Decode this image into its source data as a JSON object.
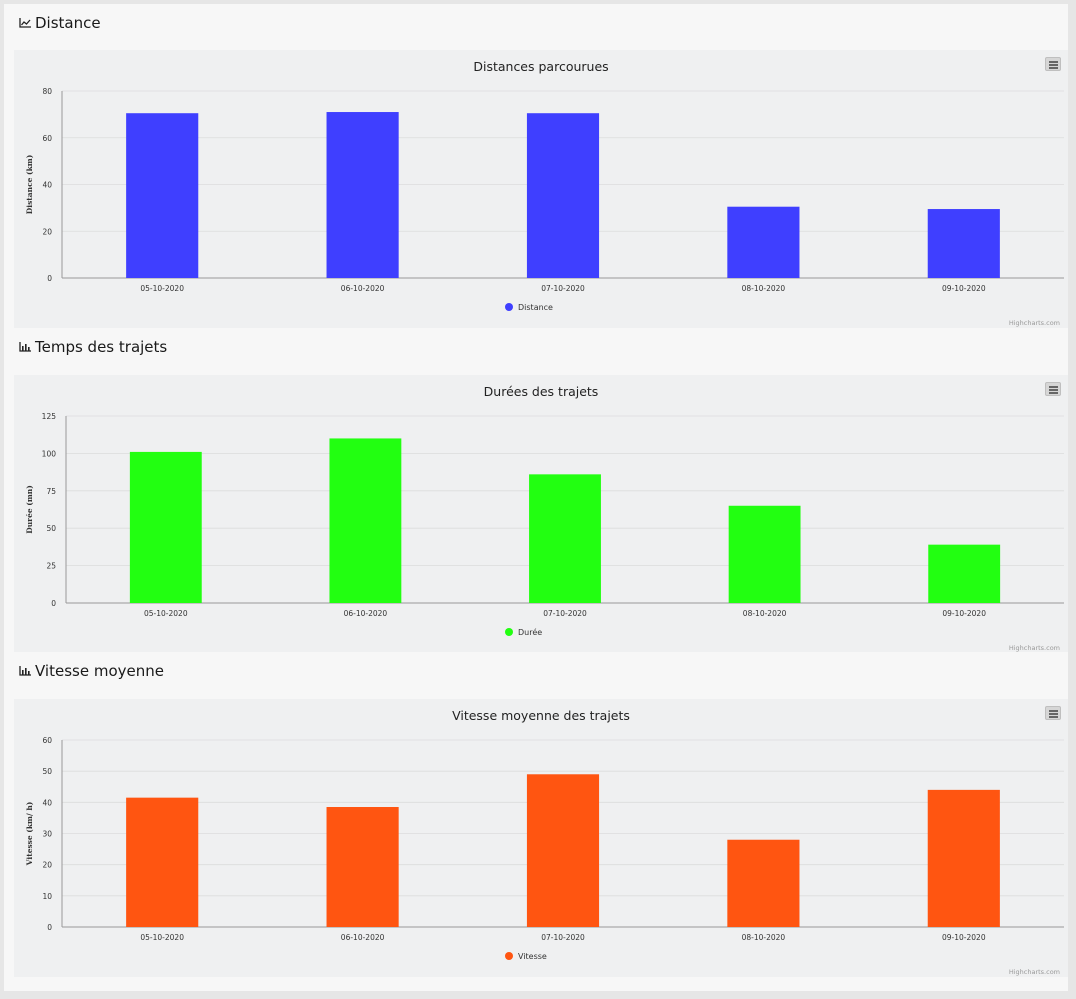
{
  "sections": [
    {
      "title": "Distance",
      "icon": "area-chart-icon"
    },
    {
      "title": "Temps des trajets",
      "icon": "bar-chart-icon"
    },
    {
      "title": "Vitesse moyenne",
      "icon": "bar-chart-icon"
    }
  ],
  "credits": "Highcharts.com",
  "chart_data": [
    {
      "type": "bar",
      "title": "Distances parcourues",
      "xlabel": "",
      "ylabel": "Distance (km)",
      "categories": [
        "05-10-2020",
        "06-10-2020",
        "07-10-2020",
        "08-10-2020",
        "09-10-2020"
      ],
      "series": [
        {
          "name": "Distance",
          "values": [
            70.5,
            71,
            70.5,
            30.5,
            29.5
          ],
          "color": "#3f3fff"
        }
      ],
      "ylim": [
        0,
        80
      ],
      "yticks": [
        0,
        20,
        40,
        60,
        80
      ],
      "grid": true,
      "legend": "bottom-center"
    },
    {
      "type": "bar",
      "title": "Durées des trajets",
      "xlabel": "",
      "ylabel": "Durée (mn)",
      "categories": [
        "05-10-2020",
        "06-10-2020",
        "07-10-2020",
        "08-10-2020",
        "09-10-2020"
      ],
      "series": [
        {
          "name": "Durée",
          "values": [
            101,
            110,
            86,
            65,
            39
          ],
          "color": "#22ff11"
        }
      ],
      "ylim": [
        0,
        125
      ],
      "yticks": [
        0,
        25,
        50,
        75,
        100,
        125
      ],
      "grid": true,
      "legend": "bottom-center"
    },
    {
      "type": "bar",
      "title": "Vitesse moyenne des trajets",
      "xlabel": "",
      "ylabel": "Vitesse (km/ h)",
      "categories": [
        "05-10-2020",
        "06-10-2020",
        "07-10-2020",
        "08-10-2020",
        "09-10-2020"
      ],
      "series": [
        {
          "name": "Vitesse",
          "values": [
            41.5,
            38.5,
            49,
            28,
            44
          ],
          "color": "#ff5511"
        }
      ],
      "ylim": [
        0,
        60
      ],
      "yticks": [
        0,
        10,
        20,
        30,
        40,
        50,
        60
      ],
      "grid": true,
      "legend": "bottom-center"
    }
  ]
}
